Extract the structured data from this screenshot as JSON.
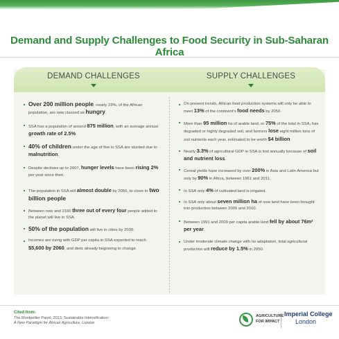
{
  "title": "Demand and Supply Challenges to Food Security in Sub-Saharan Africa",
  "demand": {
    "heading": "DEMAND CHALLENGES",
    "items": [
      {
        "parts": [
          {
            "t": "Over 200 million people",
            "s": "big"
          },
          {
            "t": ", nearly 23%, of the African population, are now classed as "
          },
          {
            "t": "hungry",
            "s": "big"
          },
          {
            "t": "."
          }
        ]
      },
      {
        "parts": [
          {
            "t": "SSA has a population of around "
          },
          {
            "t": "875 million",
            "s": "mid"
          },
          {
            "t": ", with an average annual "
          },
          {
            "t": "growth rate of 2.5%",
            "s": "mid"
          }
        ]
      },
      {
        "parts": [
          {
            "t": "40% of children",
            "s": "big"
          },
          {
            "t": " under the age of five in SSA are stunted due to "
          },
          {
            "t": "malnutrition",
            "s": "mid"
          },
          {
            "t": "."
          }
        ]
      },
      {
        "parts": [
          {
            "t": "Despite declines up to 2007, "
          },
          {
            "t": "hunger levels",
            "s": "mid"
          },
          {
            "t": " have been "
          },
          {
            "t": "rising 2%",
            "s": "mid"
          },
          {
            "t": " per year since then."
          }
        ]
      },
      {
        "parts": [
          {
            "t": "The population in SSA will "
          },
          {
            "t": "almost double",
            "s": "mid"
          },
          {
            "t": " by 2050, to close to "
          },
          {
            "t": "two billion people",
            "s": "big"
          }
        ]
      },
      {
        "parts": [
          {
            "t": "Between now and 2100 "
          },
          {
            "t": "three out of every four",
            "s": "mid"
          },
          {
            "t": " people added to the planet will live in SSA."
          }
        ]
      },
      {
        "parts": [
          {
            "t": "50% of the population",
            "s": "big"
          },
          {
            "t": " will live in cities by 2030."
          }
        ]
      },
      {
        "parts": [
          {
            "t": "Incomes are rising with GDP per capita in SSA expected to reach "
          },
          {
            "t": "$5,600 by 2060",
            "s": "mid"
          },
          {
            "t": ", and diets already beginning to change."
          }
        ]
      }
    ]
  },
  "supply": {
    "heading": "SUPPLY CHALLENGES",
    "items": [
      {
        "parts": [
          {
            "t": "On present trends, African food production systems will only be able to meet "
          },
          {
            "t": "13%",
            "s": "mid"
          },
          {
            "t": " of the continent's "
          },
          {
            "t": "food needs",
            "s": "mid"
          },
          {
            "t": " by 2050."
          }
        ]
      },
      {
        "parts": [
          {
            "t": "More than "
          },
          {
            "t": "95 million",
            "s": "mid"
          },
          {
            "t": " ha of arable land, or "
          },
          {
            "t": "75%",
            "s": "mid"
          },
          {
            "t": " of the total in SSA, has degraded or highly degraded soil, and farmers "
          },
          {
            "t": "lose",
            "s": "mid"
          },
          {
            "t": " eight million tons of soil nutrients each year, estimated to be worth "
          },
          {
            "t": "$4 billion",
            "s": "mid"
          }
        ]
      },
      {
        "parts": [
          {
            "t": "Nearly "
          },
          {
            "t": "3.3%",
            "s": "mid"
          },
          {
            "t": " of agricultural GDP in SSA is lost annually because of "
          },
          {
            "t": "soil and nutrient loss",
            "s": "mid"
          },
          {
            "t": "."
          }
        ]
      },
      {
        "parts": [
          {
            "t": "Cereal yields have increased by over "
          },
          {
            "t": "200%",
            "s": "mid"
          },
          {
            "t": " in Asia and Latin America but only by "
          },
          {
            "t": "90%",
            "s": "mid"
          },
          {
            "t": " in Africa, between 1961 and 2011."
          }
        ]
      },
      {
        "parts": [
          {
            "t": "In SSA only "
          },
          {
            "t": "4%",
            "s": "mid"
          },
          {
            "t": " of cultivated land is irrigated."
          }
        ]
      },
      {
        "parts": [
          {
            "t": "In SSA only about "
          },
          {
            "t": "seven million ha",
            "s": "mid"
          },
          {
            "t": " of new land have been brought into production between 2005 and 2010."
          }
        ]
      },
      {
        "parts": [
          {
            "t": "Between 1991 and 2009 per capita arable land "
          },
          {
            "t": "fell by about 76m² per year",
            "s": "mid"
          },
          {
            "t": "."
          }
        ]
      },
      {
        "parts": [
          {
            "t": "Under moderate climate change with no adaptation, total agricultural production will "
          },
          {
            "t": "reduce by 1.5%",
            "s": "mid"
          },
          {
            "t": " in 2050."
          }
        ]
      }
    ]
  },
  "cited": {
    "heading": "Cited from:",
    "line1": "The Montpellier Panel, 2013, Sustainable Intensification:",
    "line2": "A New Paradigm for African Agriculture, London"
  },
  "logos": {
    "agri_line1": "AGRICULTURE",
    "agri_line2": "FOR IMPACT",
    "imperial_line1": "Imperial College",
    "imperial_line2": "London"
  }
}
